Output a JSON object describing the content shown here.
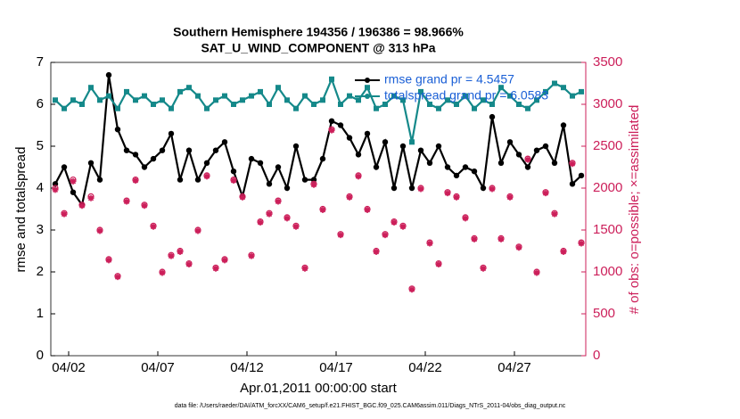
{
  "chart_data": {
    "type": "line",
    "title": "Southern Hemisphere 194356 / 196386 = 98.966%",
    "subtitle": "SAT_U_WIND_COMPONENT @ 313 hPa",
    "xlabel": "Apr.01,2011 00:00:00 start",
    "ylabel": "rmse and totalspread",
    "y2label": "# of obs: o=possible; ×=assimilated",
    "footnote": "data file: /Users/raeder/DAI/ATM_forcXX/CAM6_setup/f.e21.FHIST_BGC.f09_025.CAM6assim.011/Diags_NTrS_2011-04/obs_diag_output.nc",
    "xlim": [
      0,
      30
    ],
    "xticks": [
      {
        "value": 1,
        "label": "04/02"
      },
      {
        "value": 6,
        "label": "04/07"
      },
      {
        "value": 11,
        "label": "04/12"
      },
      {
        "value": 16,
        "label": "04/17"
      },
      {
        "value": 21,
        "label": "04/22"
      },
      {
        "value": 26,
        "label": "04/27"
      }
    ],
    "ylim": [
      0,
      7
    ],
    "yticks": [
      0,
      1,
      2,
      3,
      4,
      5,
      6,
      7
    ],
    "y2lim": [
      0,
      3500
    ],
    "y2ticks": [
      0,
      500,
      1000,
      1500,
      2000,
      2500,
      3000,
      3500
    ],
    "x": [
      0.25,
      0.75,
      1.25,
      1.75,
      2.25,
      2.75,
      3.25,
      3.75,
      4.25,
      4.75,
      5.25,
      5.75,
      6.25,
      6.75,
      7.25,
      7.75,
      8.25,
      8.75,
      9.25,
      9.75,
      10.25,
      10.75,
      11.25,
      11.75,
      12.25,
      12.75,
      13.25,
      13.75,
      14.25,
      14.75,
      15.25,
      15.75,
      16.25,
      16.75,
      17.25,
      17.75,
      18.25,
      18.75,
      19.25,
      19.75,
      20.25,
      20.75,
      21.25,
      21.75,
      22.25,
      22.75,
      23.25,
      23.75,
      24.25,
      24.75,
      25.25,
      25.75,
      26.25,
      26.75,
      27.25,
      27.75,
      28.25,
      28.75,
      29.25,
      29.75
    ],
    "series": [
      {
        "name": "rmse grand pr = 4.5457",
        "color": "#000000",
        "marker": "circle",
        "line": true,
        "values": [
          4.1,
          4.5,
          3.9,
          3.6,
          4.6,
          4.2,
          6.7,
          5.4,
          4.9,
          4.8,
          4.5,
          4.7,
          4.9,
          5.3,
          4.2,
          4.9,
          4.2,
          4.6,
          4.9,
          5.1,
          4.4,
          3.8,
          4.7,
          4.6,
          4.1,
          4.5,
          4.0,
          5.0,
          4.2,
          4.2,
          4.7,
          5.6,
          5.5,
          5.2,
          4.8,
          5.3,
          4.5,
          5.1,
          4.0,
          5.0,
          4.0,
          4.9,
          4.6,
          5.0,
          4.5,
          4.3,
          4.5,
          4.4,
          4.0,
          5.7,
          4.6,
          5.1,
          4.8,
          4.5,
          4.9,
          5.0,
          4.6,
          5.5,
          4.1,
          4.3
        ]
      },
      {
        "name": "totalspread grand pr = 6.0583",
        "color": "#15898a",
        "marker": "square",
        "line": true,
        "values": [
          6.1,
          5.9,
          6.1,
          6.0,
          6.4,
          6.1,
          6.2,
          5.9,
          6.3,
          6.1,
          6.2,
          6.0,
          6.1,
          5.9,
          6.3,
          6.4,
          6.2,
          5.9,
          6.1,
          6.2,
          6.0,
          6.1,
          6.2,
          6.3,
          6.0,
          6.4,
          6.1,
          5.9,
          6.2,
          6.0,
          6.1,
          6.6,
          6.0,
          6.2,
          6.1,
          6.4,
          5.9,
          6.0,
          6.2,
          6.1,
          5.1,
          6.3,
          6.0,
          5.9,
          6.1,
          6.0,
          6.2,
          5.9,
          6.1,
          6.0,
          6.4,
          6.2,
          6.0,
          5.9,
          6.1,
          6.3,
          6.5,
          6.4,
          6.2,
          6.3
        ]
      },
      {
        "name": "possible",
        "color": "#cc1f5a",
        "marker": "ring",
        "axis": "y2",
        "values": [
          2000,
          1700,
          2100,
          1800,
          1900,
          1500,
          1150,
          950,
          1850,
          2100,
          1800,
          1550,
          1000,
          1200,
          1250,
          1100,
          1500,
          2150,
          1050,
          1150,
          2100,
          1900,
          1200,
          1600,
          1700,
          1850,
          1650,
          1550,
          1050,
          2050,
          1750,
          2700,
          1450,
          1900,
          2150,
          1750,
          1250,
          1450,
          1600,
          1550,
          800,
          2000,
          1350,
          1100,
          1950,
          1900,
          1650,
          1400,
          1050,
          2000,
          1400,
          1900,
          1300,
          2350,
          1000,
          1950,
          1700,
          1250,
          2300,
          1350
        ]
      },
      {
        "name": "assimilated",
        "color": "#cc1f5a",
        "marker": "star",
        "axis": "y2",
        "values": [
          1980,
          1690,
          2080,
          1790,
          1880,
          1490,
          1140,
          940,
          1840,
          2090,
          1790,
          1540,
          990,
          1190,
          1240,
          1090,
          1490,
          2140,
          1040,
          1140,
          2090,
          1890,
          1190,
          1590,
          1690,
          1840,
          1640,
          1540,
          1040,
          2040,
          1740,
          2690,
          1440,
          1890,
          2140,
          1740,
          1240,
          1440,
          1590,
          1540,
          790,
          1990,
          1340,
          1090,
          1940,
          1890,
          1640,
          1390,
          1040,
          1990,
          1390,
          1890,
          1290,
          2340,
          990,
          1940,
          1690,
          1240,
          2290,
          1340
        ]
      }
    ]
  }
}
